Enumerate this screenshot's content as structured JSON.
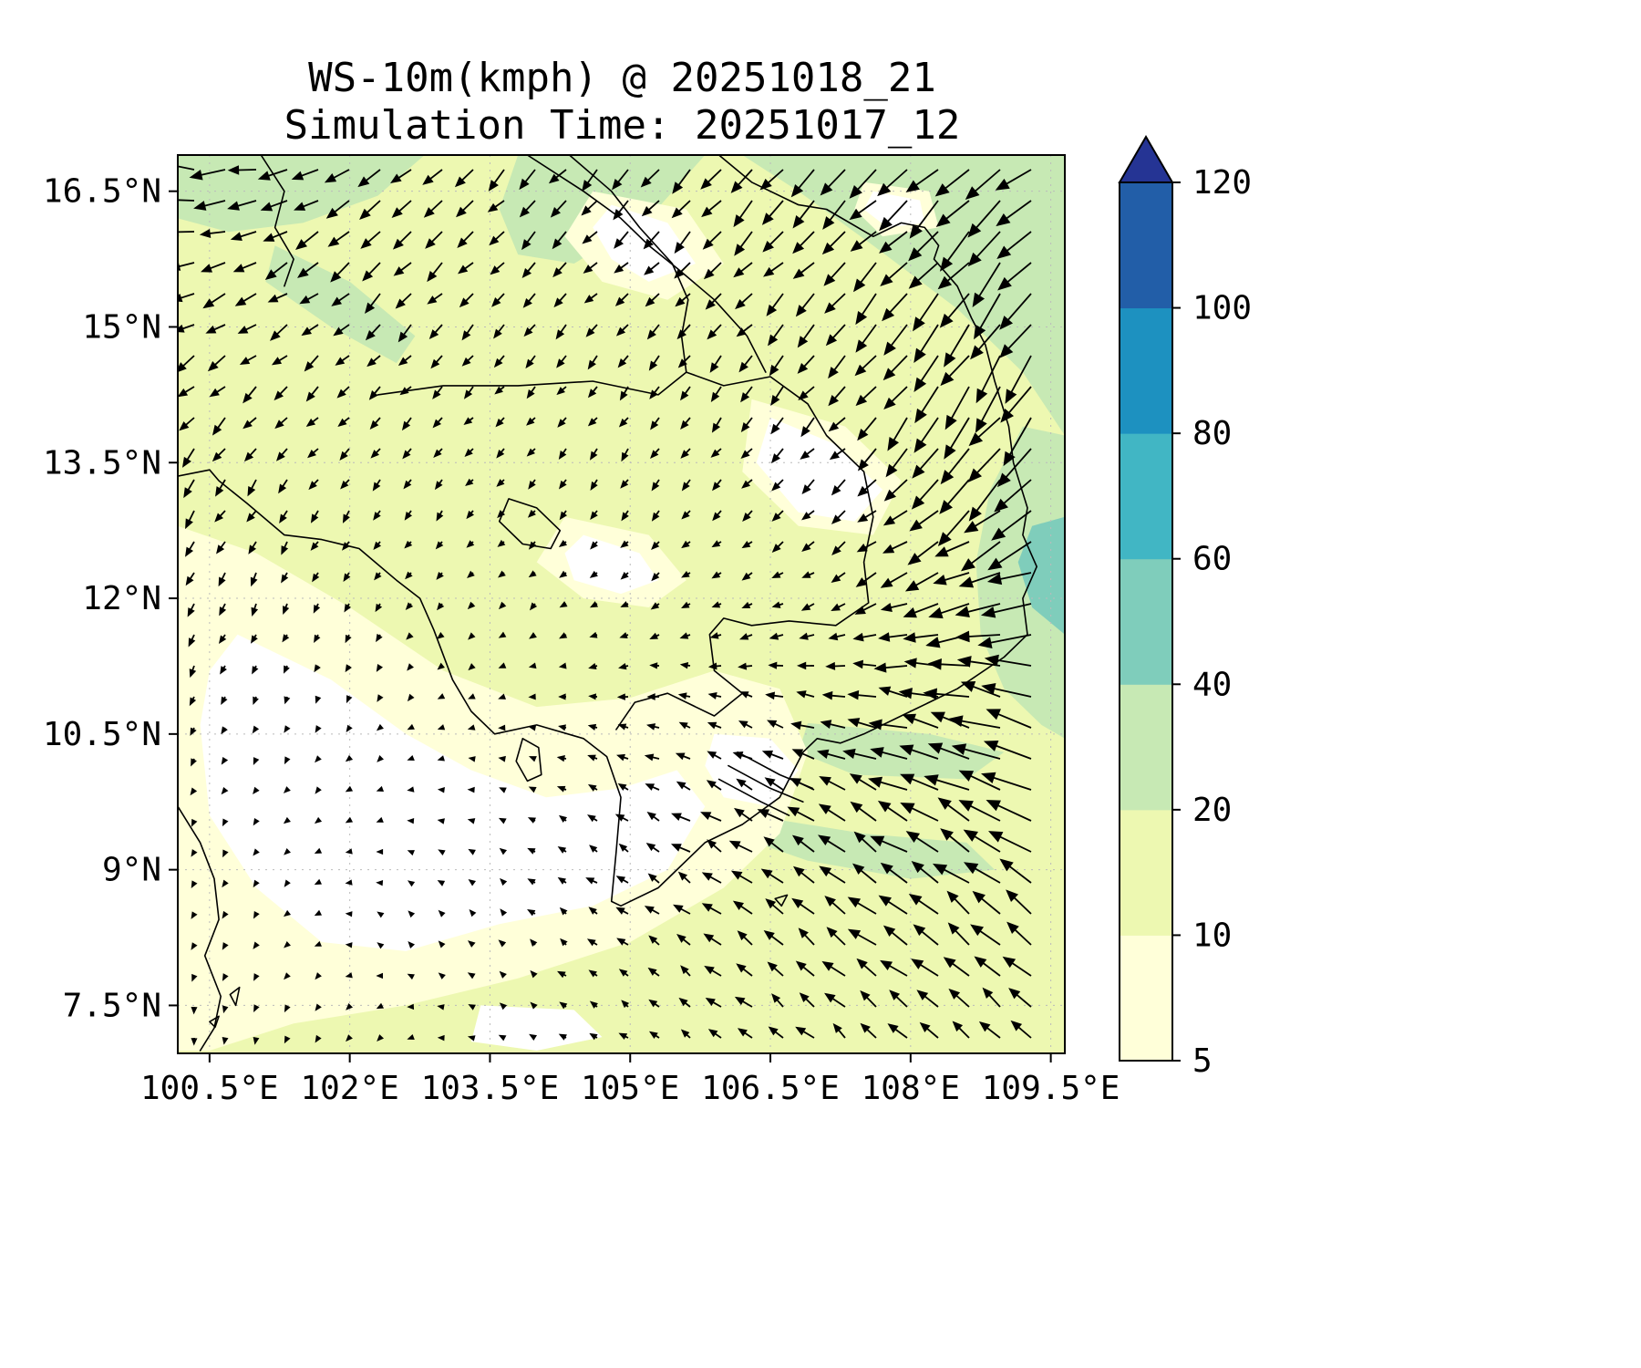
{
  "title": {
    "line1": "WS-10m(kmph) @ 20251018_21",
    "line2": "Simulation Time: 20251017_12"
  },
  "axes": {
    "x_ticks": [
      {
        "lon": 100.5,
        "label": "100.5°E"
      },
      {
        "lon": 102.0,
        "label": "102°E"
      },
      {
        "lon": 103.5,
        "label": "103.5°E"
      },
      {
        "lon": 105.0,
        "label": "105°E"
      },
      {
        "lon": 106.5,
        "label": "106.5°E"
      },
      {
        "lon": 108.0,
        "label": "108°E"
      },
      {
        "lon": 109.5,
        "label": "109.5°E"
      }
    ],
    "y_ticks": [
      {
        "lat": 16.5,
        "label": "16.5°N"
      },
      {
        "lat": 15.0,
        "label": "15°N"
      },
      {
        "lat": 13.5,
        "label": "13.5°N"
      },
      {
        "lat": 12.0,
        "label": "12°N"
      },
      {
        "lat": 10.5,
        "label": "10.5°N"
      },
      {
        "lat": 9.0,
        "label": "9°N"
      },
      {
        "lat": 7.5,
        "label": "7.5°N"
      }
    ]
  },
  "colorbar": {
    "levels": [
      5,
      10,
      20,
      40,
      60,
      80,
      100,
      120
    ],
    "tick_labels": [
      "5",
      "10",
      "20",
      "40",
      "60",
      "80",
      "100",
      "120"
    ],
    "colors": [
      "#ffffd9",
      "#edf8b1",
      "#c7e9b4",
      "#7fcdbb",
      "#41b6c4",
      "#1d91c0",
      "#225ea8"
    ],
    "over_color": "#253494",
    "outline_color": "#000000"
  },
  "chart_data": {
    "type": "heatmap",
    "overlays": [
      "wind_vectors",
      "coastlines",
      "country_borders"
    ],
    "title": "WS-10m(kmph) @ 20251018_21",
    "subtitle": "Simulation Time: 20251017_12",
    "variable": "WS-10m",
    "units": "kmph",
    "valid_time": "20251018_21",
    "simulation_time": "20251017_12",
    "xlabel": "",
    "ylabel": "",
    "x_range_deg_east": [
      100.5,
      109.5
    ],
    "y_range_deg_north": [
      7.5,
      16.5
    ],
    "contour_levels": [
      5,
      10,
      20,
      40,
      60,
      80,
      100,
      120
    ],
    "contour_colors": [
      "#ffffd9",
      "#edf8b1",
      "#c7e9b4",
      "#7fcdbb",
      "#41b6c4",
      "#1d91c0",
      "#225ea8"
    ],
    "extend_over_color": "#253494",
    "grid": true,
    "wind_grid": {
      "lons": [
        100.16,
        101.35,
        102.53,
        103.72,
        104.9,
        106.09,
        107.28,
        108.46,
        109.65
      ],
      "lats": [
        16.9,
        15.66,
        14.42,
        13.18,
        11.94,
        10.7,
        9.46,
        8.22,
        7.0
      ],
      "u": [
        [
          -18,
          -14,
          -10,
          -8,
          -8,
          -10,
          -12,
          -16,
          -18
        ],
        [
          -12,
          -10,
          -8,
          -6,
          -6,
          -8,
          -10,
          -14,
          -16
        ],
        [
          -8,
          -6,
          -5,
          -4,
          -4,
          -5,
          -8,
          -12,
          -14
        ],
        [
          -5,
          -4,
          -3,
          -3,
          -3,
          -4,
          -6,
          -14,
          -20
        ],
        [
          -3,
          -2,
          -2,
          -2,
          -3,
          -4,
          -6,
          -18,
          -26
        ],
        [
          -2,
          -1,
          -1,
          -2,
          -4,
          -6,
          -10,
          -20,
          -26
        ],
        [
          -1,
          -1,
          -1,
          -2,
          -5,
          -9,
          -13,
          -17,
          -20
        ],
        [
          -1,
          -1,
          -1,
          -2,
          -4,
          -7,
          -10,
          -12,
          -13
        ],
        [
          0,
          -1,
          -1,
          -2,
          -3,
          -5,
          -7,
          -8,
          -9
        ]
      ],
      "v": [
        [
          2,
          -4,
          -8,
          -8,
          -8,
          -10,
          -12,
          -14,
          -14
        ],
        [
          -4,
          -6,
          -8,
          -6,
          -6,
          -8,
          -10,
          -16,
          -18
        ],
        [
          -6,
          -6,
          -5,
          -4,
          -5,
          -6,
          -8,
          -18,
          -22
        ],
        [
          -8,
          -5,
          -4,
          -3,
          -4,
          -4,
          -6,
          -14,
          -16
        ],
        [
          -6,
          -4,
          -3,
          -2,
          -2,
          -2,
          -3,
          -6,
          -4
        ],
        [
          -3,
          -2,
          -1,
          0,
          1,
          2,
          3,
          5,
          8
        ],
        [
          -2,
          -1,
          0,
          1,
          3,
          5,
          8,
          10,
          12
        ],
        [
          -2,
          -1,
          1,
          2,
          3,
          6,
          8,
          10,
          11
        ],
        [
          -3,
          -2,
          -1,
          1,
          2,
          4,
          6,
          7,
          8
        ]
      ]
    }
  }
}
